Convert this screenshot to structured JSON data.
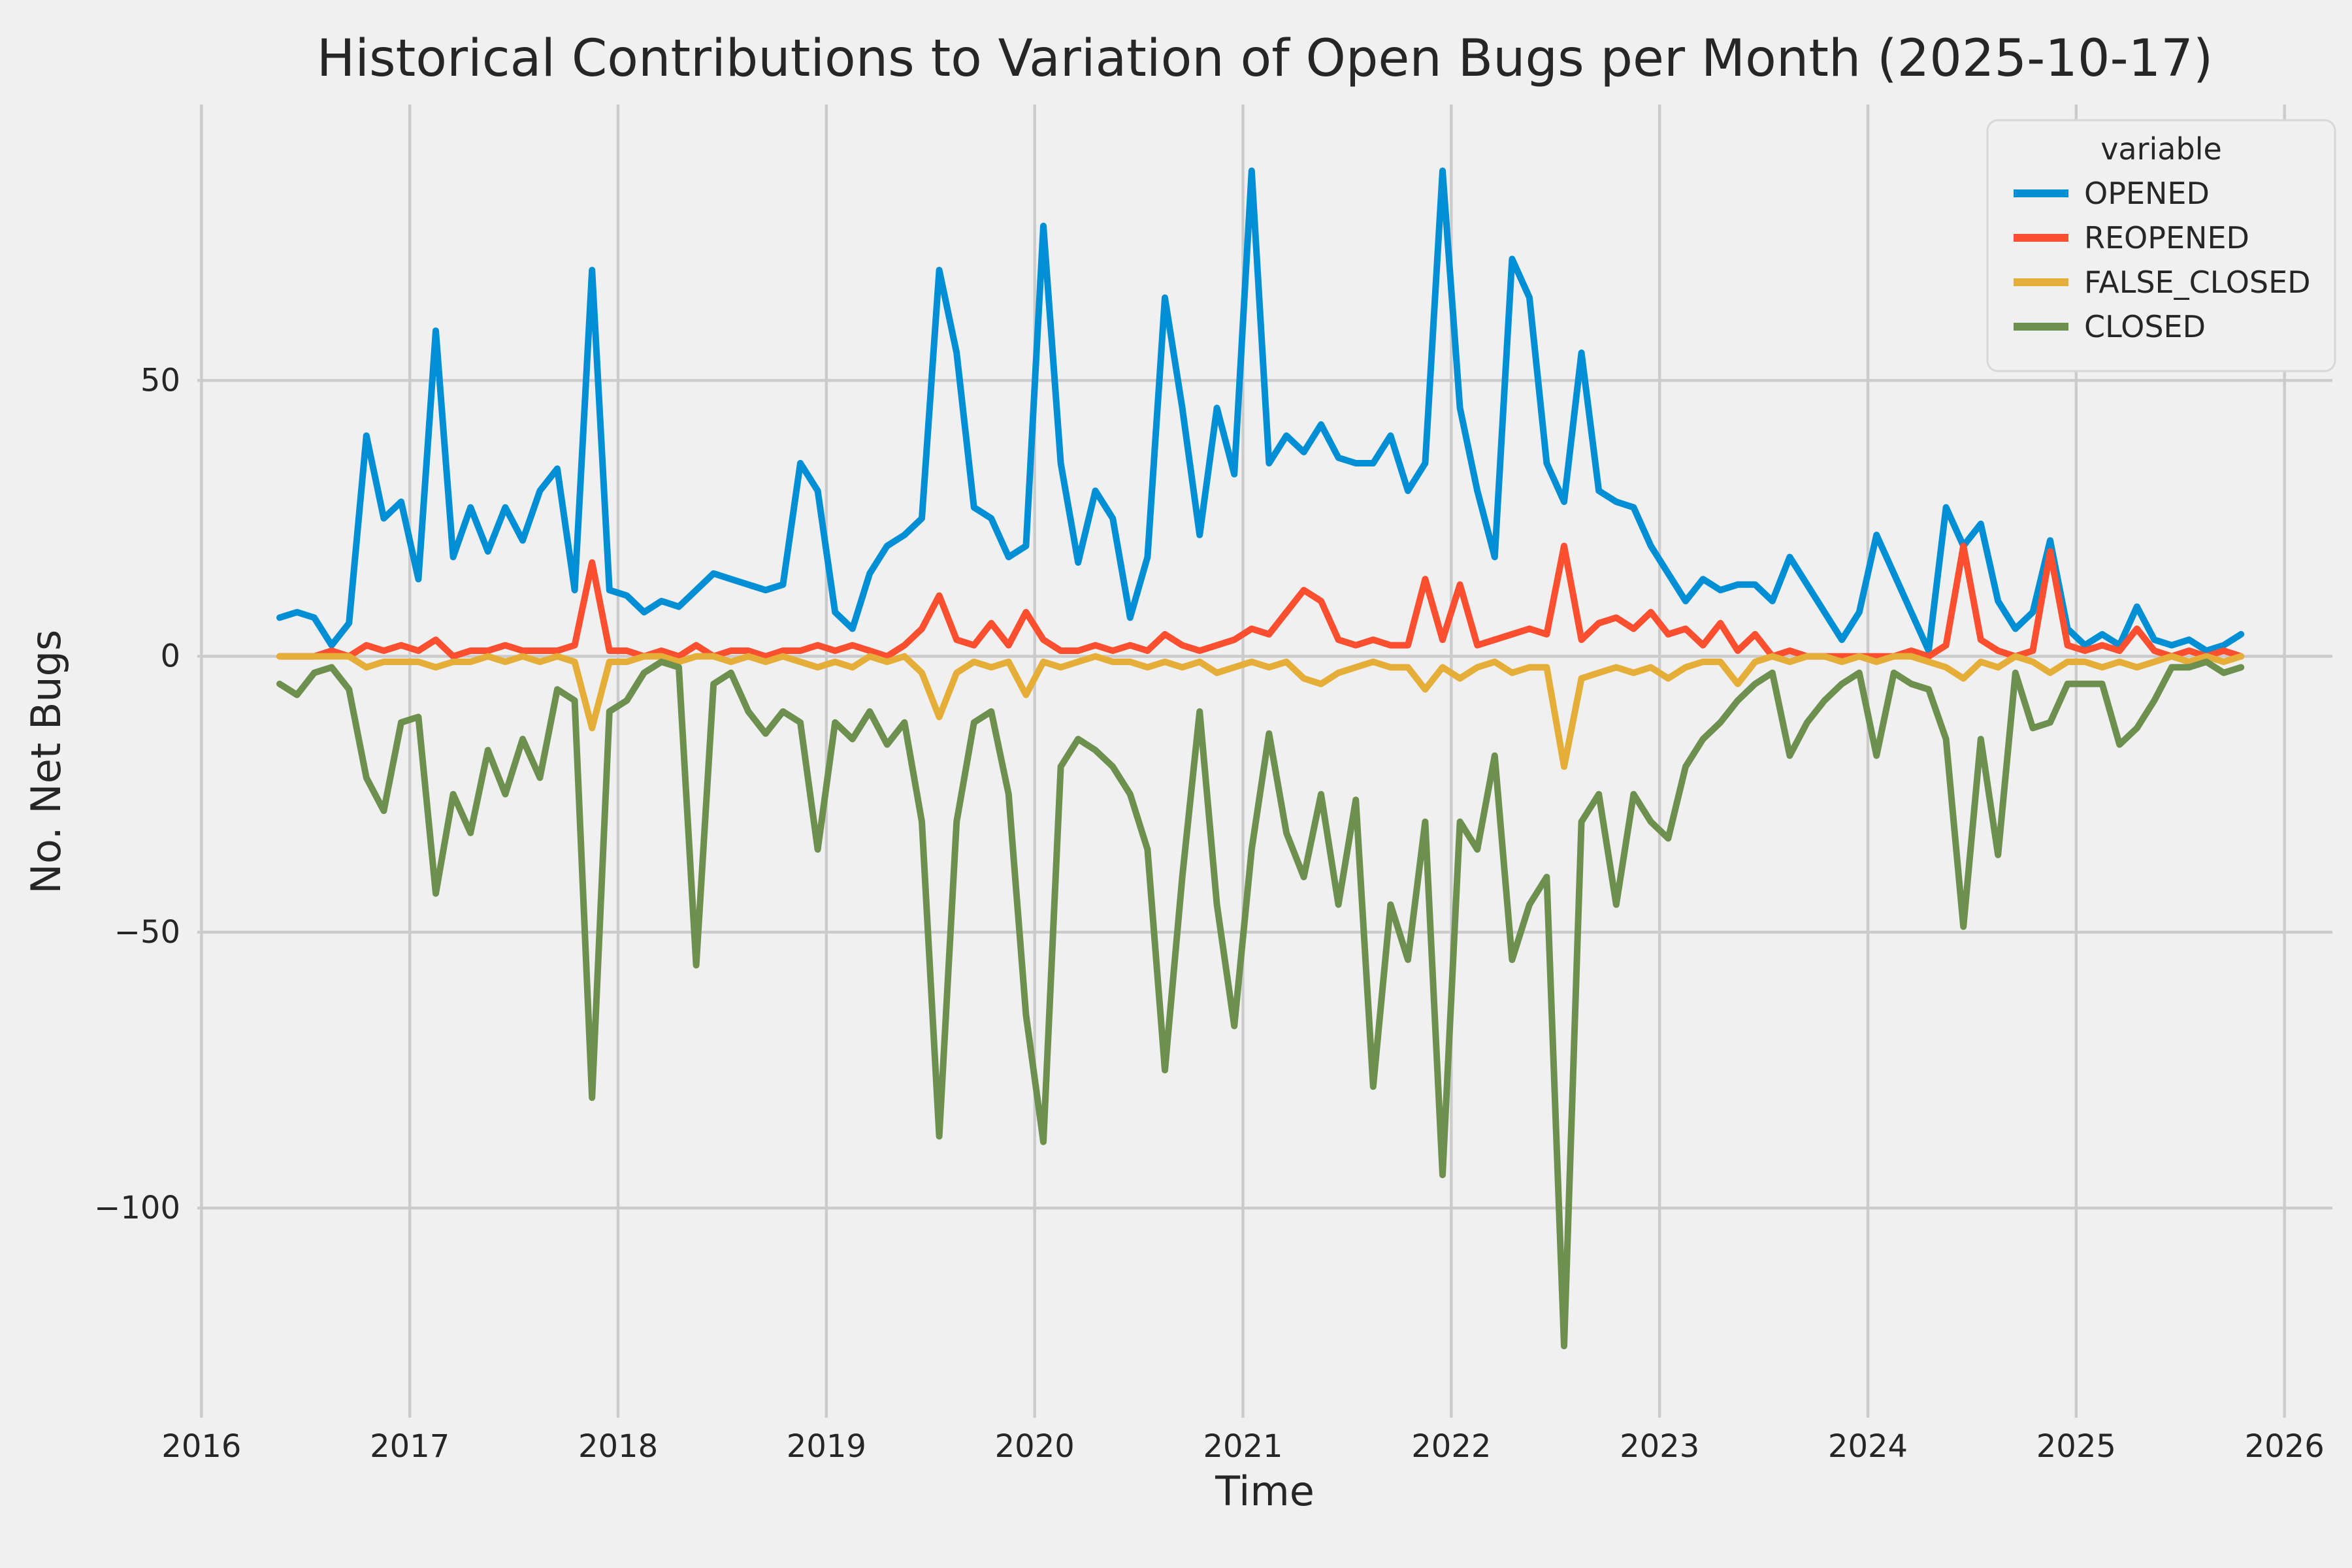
{
  "figure": {
    "title": "Historical Contributions to Variation of Open Bugs per Month (2025-10-17)",
    "x_axis_label": "Time",
    "y_axis_label": "No. Net Bugs"
  },
  "legend": {
    "title": "variable",
    "items": [
      {
        "label": "OPENED",
        "color": "#008fd5"
      },
      {
        "label": "REOPENED",
        "color": "#fc4f30"
      },
      {
        "label": "FALSE_CLOSED",
        "color": "#e5ae38"
      },
      {
        "label": "CLOSED",
        "color": "#6d904f"
      }
    ]
  },
  "chart_data": {
    "type": "line",
    "title": "Historical Contributions to Variation of Open Bugs per Month (2025-10-17)",
    "xlabel": "Time",
    "ylabel": "No. Net Bugs",
    "x_start": "2016-05",
    "frequency": "monthly",
    "xlim": [
      2015.98,
      2026.23
    ],
    "ylim": [
      -138,
      100
    ],
    "grid": true,
    "legend_position": "upper right",
    "background_color": "#f0f0f0",
    "grid_color": "#cbcbcb",
    "text_color": "#262626",
    "line_width": 5,
    "x_ticks": [
      {
        "value": 2016,
        "label": "2016"
      },
      {
        "value": 2017,
        "label": "2017"
      },
      {
        "value": 2018,
        "label": "2018"
      },
      {
        "value": 2019,
        "label": "2019"
      },
      {
        "value": 2020,
        "label": "2020"
      },
      {
        "value": 2021,
        "label": "2021"
      },
      {
        "value": 2022,
        "label": "2022"
      },
      {
        "value": 2023,
        "label": "2023"
      },
      {
        "value": 2024,
        "label": "2024"
      },
      {
        "value": 2025,
        "label": "2025"
      },
      {
        "value": 2026,
        "label": "2026"
      }
    ],
    "y_ticks": [
      {
        "value": -100,
        "label": "−100"
      },
      {
        "value": -50,
        "label": "−50"
      },
      {
        "value": 0,
        "label": "0"
      },
      {
        "value": 50,
        "label": "50"
      }
    ],
    "series": [
      {
        "name": "OPENED",
        "color": "#008fd5",
        "values": [
          7,
          8,
          7,
          2,
          6,
          40,
          25,
          28,
          14,
          59,
          18,
          27,
          19,
          27,
          21,
          30,
          34,
          12,
          70,
          12,
          11,
          8,
          10,
          9,
          12,
          15,
          14,
          13,
          12,
          13,
          35,
          30,
          8,
          5,
          15,
          20,
          22,
          25,
          70,
          55,
          27,
          25,
          18,
          20,
          78,
          35,
          17,
          30,
          25,
          7,
          18,
          65,
          45,
          22,
          45,
          33,
          88,
          35,
          40,
          37,
          42,
          36,
          35,
          35,
          40,
          30,
          35,
          88,
          45,
          30,
          18,
          72,
          65,
          35,
          28,
          55,
          30,
          28,
          27,
          20,
          15,
          10,
          14,
          12,
          13,
          13,
          10,
          18,
          13,
          8,
          3,
          8,
          22,
          15,
          8,
          1,
          27,
          20,
          24,
          10,
          5,
          8,
          21,
          5,
          2,
          4,
          2,
          9,
          3,
          2,
          3,
          1,
          2,
          4
        ]
      },
      {
        "name": "REOPENED",
        "color": "#fc4f30",
        "values": [
          0,
          0,
          0,
          1,
          0,
          2,
          1,
          2,
          1,
          3,
          0,
          1,
          1,
          2,
          1,
          1,
          1,
          2,
          17,
          1,
          1,
          0,
          1,
          0,
          2,
          0,
          1,
          1,
          0,
          1,
          1,
          2,
          1,
          2,
          1,
          0,
          2,
          5,
          11,
          3,
          2,
          6,
          2,
          8,
          3,
          1,
          1,
          2,
          1,
          2,
          1,
          4,
          2,
          1,
          2,
          3,
          5,
          4,
          8,
          12,
          10,
          3,
          2,
          3,
          2,
          2,
          14,
          3,
          13,
          2,
          3,
          4,
          5,
          4,
          20,
          3,
          6,
          7,
          5,
          8,
          4,
          5,
          2,
          6,
          1,
          4,
          0,
          1,
          0,
          0,
          0,
          0,
          0,
          0,
          1,
          0,
          2,
          20,
          3,
          1,
          0,
          1,
          19,
          2,
          1,
          2,
          1,
          5,
          1,
          0,
          1,
          0,
          1,
          0
        ]
      },
      {
        "name": "FALSE_CLOSED",
        "color": "#e5ae38",
        "values": [
          0,
          0,
          0,
          0,
          0,
          -2,
          -1,
          -1,
          -1,
          -2,
          -1,
          -1,
          0,
          -1,
          0,
          -1,
          0,
          -1,
          -13,
          -1,
          -1,
          0,
          0,
          -1,
          0,
          0,
          -1,
          0,
          -1,
          0,
          -1,
          -2,
          -1,
          -2,
          0,
          -1,
          0,
          -3,
          -11,
          -3,
          -1,
          -2,
          -1,
          -7,
          -1,
          -2,
          -1,
          0,
          -1,
          -1,
          -2,
          -1,
          -2,
          -1,
          -3,
          -2,
          -1,
          -2,
          -1,
          -4,
          -5,
          -3,
          -2,
          -1,
          -2,
          -2,
          -6,
          -2,
          -4,
          -2,
          -1,
          -3,
          -2,
          -2,
          -20,
          -4,
          -3,
          -2,
          -3,
          -2,
          -4,
          -2,
          -1,
          -1,
          -5,
          -1,
          0,
          -1,
          0,
          0,
          -1,
          0,
          -1,
          0,
          0,
          -1,
          -2,
          -4,
          -1,
          -2,
          0,
          -1,
          -3,
          -1,
          -1,
          -2,
          -1,
          -2,
          -1,
          0,
          -1,
          0,
          -1,
          0
        ]
      },
      {
        "name": "CLOSED",
        "color": "#6d904f",
        "values": [
          -5,
          -7,
          -3,
          -2,
          -6,
          -22,
          -28,
          -12,
          -11,
          -43,
          -25,
          -32,
          -17,
          -25,
          -15,
          -22,
          -6,
          -8,
          -80,
          -10,
          -8,
          -3,
          -1,
          -2,
          -56,
          -5,
          -3,
          -10,
          -14,
          -10,
          -12,
          -35,
          -12,
          -15,
          -10,
          -16,
          -12,
          -30,
          -87,
          -30,
          -12,
          -10,
          -25,
          -65,
          -88,
          -20,
          -15,
          -17,
          -20,
          -25,
          -35,
          -75,
          -40,
          -10,
          -45,
          -67,
          -35,
          -14,
          -32,
          -40,
          -25,
          -45,
          -26,
          -78,
          -45,
          -55,
          -30,
          -94,
          -30,
          -35,
          -18,
          -55,
          -45,
          -40,
          -125,
          -30,
          -25,
          -45,
          -25,
          -30,
          -33,
          -20,
          -15,
          -12,
          -8,
          -5,
          -3,
          -18,
          -12,
          -8,
          -5,
          -3,
          -18,
          -3,
          -5,
          -6,
          -15,
          -49,
          -15,
          -36,
          -3,
          -13,
          -12,
          -5,
          -5,
          -5,
          -16,
          -13,
          -8,
          -2,
          -2,
          -1,
          -3,
          -2
        ]
      }
    ]
  }
}
